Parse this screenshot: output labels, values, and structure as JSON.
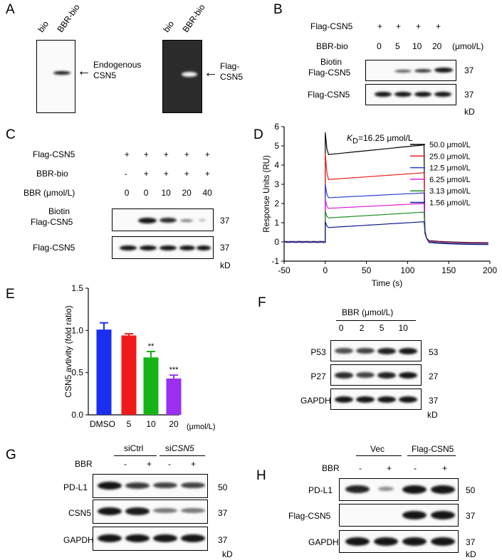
{
  "panels": {
    "A": "A",
    "B": "B",
    "C": "C",
    "D": "D",
    "E": "E",
    "F": "F",
    "G": "G",
    "H": "H"
  },
  "A": {
    "left": {
      "lanes": [
        "bio",
        "BBR-bio"
      ],
      "label_line1": "Endogenous",
      "label_line2": "CSN5"
    },
    "right": {
      "lanes": [
        "bio",
        "BBR-bio"
      ],
      "label_line1": "Flag-",
      "label_line2": "CSN5"
    }
  },
  "B": {
    "row1_label": "Flag-CSN5",
    "row1_values": [
      "+",
      "+",
      "+",
      "+"
    ],
    "row2_label": "BBR-bio",
    "row2_values": [
      "0",
      "5",
      "10",
      "20"
    ],
    "unit": "(μmol/L)",
    "blot1_line1": "Biotin",
    "blot1_line2": "Flag-CSN5",
    "blot2": "Flag-CSN5",
    "mw1": "37",
    "mw2": "37",
    "kd": "kD"
  },
  "C": {
    "row1_label": "Flag-CSN5",
    "row1_values": [
      "+",
      "+",
      "+",
      "+",
      "+"
    ],
    "row2_label": "BBR-bio",
    "row2_values": [
      "-",
      "+",
      "+",
      "+",
      "+"
    ],
    "row3_label": "BBR (μmol/L)",
    "row3_values": [
      "0",
      "0",
      "10",
      "20",
      "40"
    ],
    "blot1_line1": "Biotin",
    "blot1_line2": "Flag-CSN5",
    "blot2": "Flag-CSN5",
    "mw1": "37",
    "mw2": "37",
    "kd": "kD"
  },
  "D": {
    "kd_k": "K",
    "kd_sub": "D",
    "kd_rest": "=16.25 μmol/L",
    "chart_data": {
      "type": "line",
      "xlabel": "Time (s)",
      "ylabel": "Response Units (RU)",
      "xlim": [
        -50,
        200
      ],
      "ylim": [
        -1,
        6
      ],
      "xticks": [
        "-50",
        "0",
        "50",
        "100",
        "150",
        "200"
      ],
      "yticks": [
        "-1",
        "0",
        "1",
        "2",
        "3",
        "4",
        "5",
        "6"
      ],
      "legend_position": "top-right",
      "series": [
        {
          "name": "50.0 μmol/L",
          "color": "#000000",
          "peak": 5.7,
          "plateau": 4.55,
          "end": 5.05
        },
        {
          "name": "25.0 μmol/L",
          "color": "#e8231f",
          "peak": 4.6,
          "plateau": 3.25,
          "end": 3.6
        },
        {
          "name": "12.5 μmol/L",
          "color": "#2d3fd8",
          "peak": 3.0,
          "plateau": 2.3,
          "end": 2.55
        },
        {
          "name": "6.25 μmol/L",
          "color": "#e01fd8",
          "peak": 2.2,
          "plateau": 1.75,
          "end": 2.0
        },
        {
          "name": "3.13 μmol/L",
          "color": "#1f8f24",
          "peak": 1.6,
          "plateau": 1.25,
          "end": 1.55
        },
        {
          "name": "1.56 μmol/L",
          "color": "#0b1d8c",
          "peak": 1.05,
          "plateau": 0.75,
          "end": 1.05
        }
      ]
    }
  },
  "E": {
    "stars": [
      "",
      "",
      "**",
      "***"
    ],
    "unit": "(μmol/L)",
    "chart_data": {
      "type": "bar",
      "categories": [
        "DMSO",
        "5",
        "10",
        "20"
      ],
      "values": [
        1.01,
        0.94,
        0.68,
        0.43
      ],
      "errors": [
        0.08,
        0.02,
        0.07,
        0.04
      ],
      "colors": [
        "#1a2ff0",
        "#f01a1a",
        "#16b316",
        "#9b30f0"
      ],
      "ylabel": "CSN5 avtivity (fold ratio)",
      "ylim": [
        0,
        1.5
      ],
      "yticks": [
        "0.0",
        "0.5",
        "1.0",
        "1.5"
      ]
    }
  },
  "F": {
    "header": "BBR (μmol/L)",
    "doses": [
      "0",
      "2",
      "5",
      "10"
    ],
    "rows": [
      {
        "label": "P53",
        "mw": "53"
      },
      {
        "label": "P27",
        "mw": "27"
      },
      {
        "label": "GAPDH",
        "mw": "37"
      }
    ],
    "kd": "kD"
  },
  "G": {
    "group1": "siCtrl",
    "group2_prefix": "si",
    "group2_italic": "CSN5",
    "bbr_label": "BBR",
    "bbr_values": [
      "-",
      "+",
      "-",
      "+"
    ],
    "rows": [
      {
        "label": "PD-L1",
        "mw": "50"
      },
      {
        "label": "CSN5",
        "mw": "37"
      },
      {
        "label": "GAPDH",
        "mw": "37"
      }
    ],
    "kd": "kD"
  },
  "H": {
    "group1": "Vec",
    "group2": "Flag-CSN5",
    "bbr_label": "BBR",
    "bbr_values": [
      "-",
      "+",
      "-",
      "+"
    ],
    "rows": [
      {
        "label": "PD-L1",
        "mw": "50"
      },
      {
        "label": "Flag-CSN5",
        "mw": "37"
      },
      {
        "label": "GAPDH",
        "mw": "37"
      }
    ],
    "kd": "kD"
  }
}
